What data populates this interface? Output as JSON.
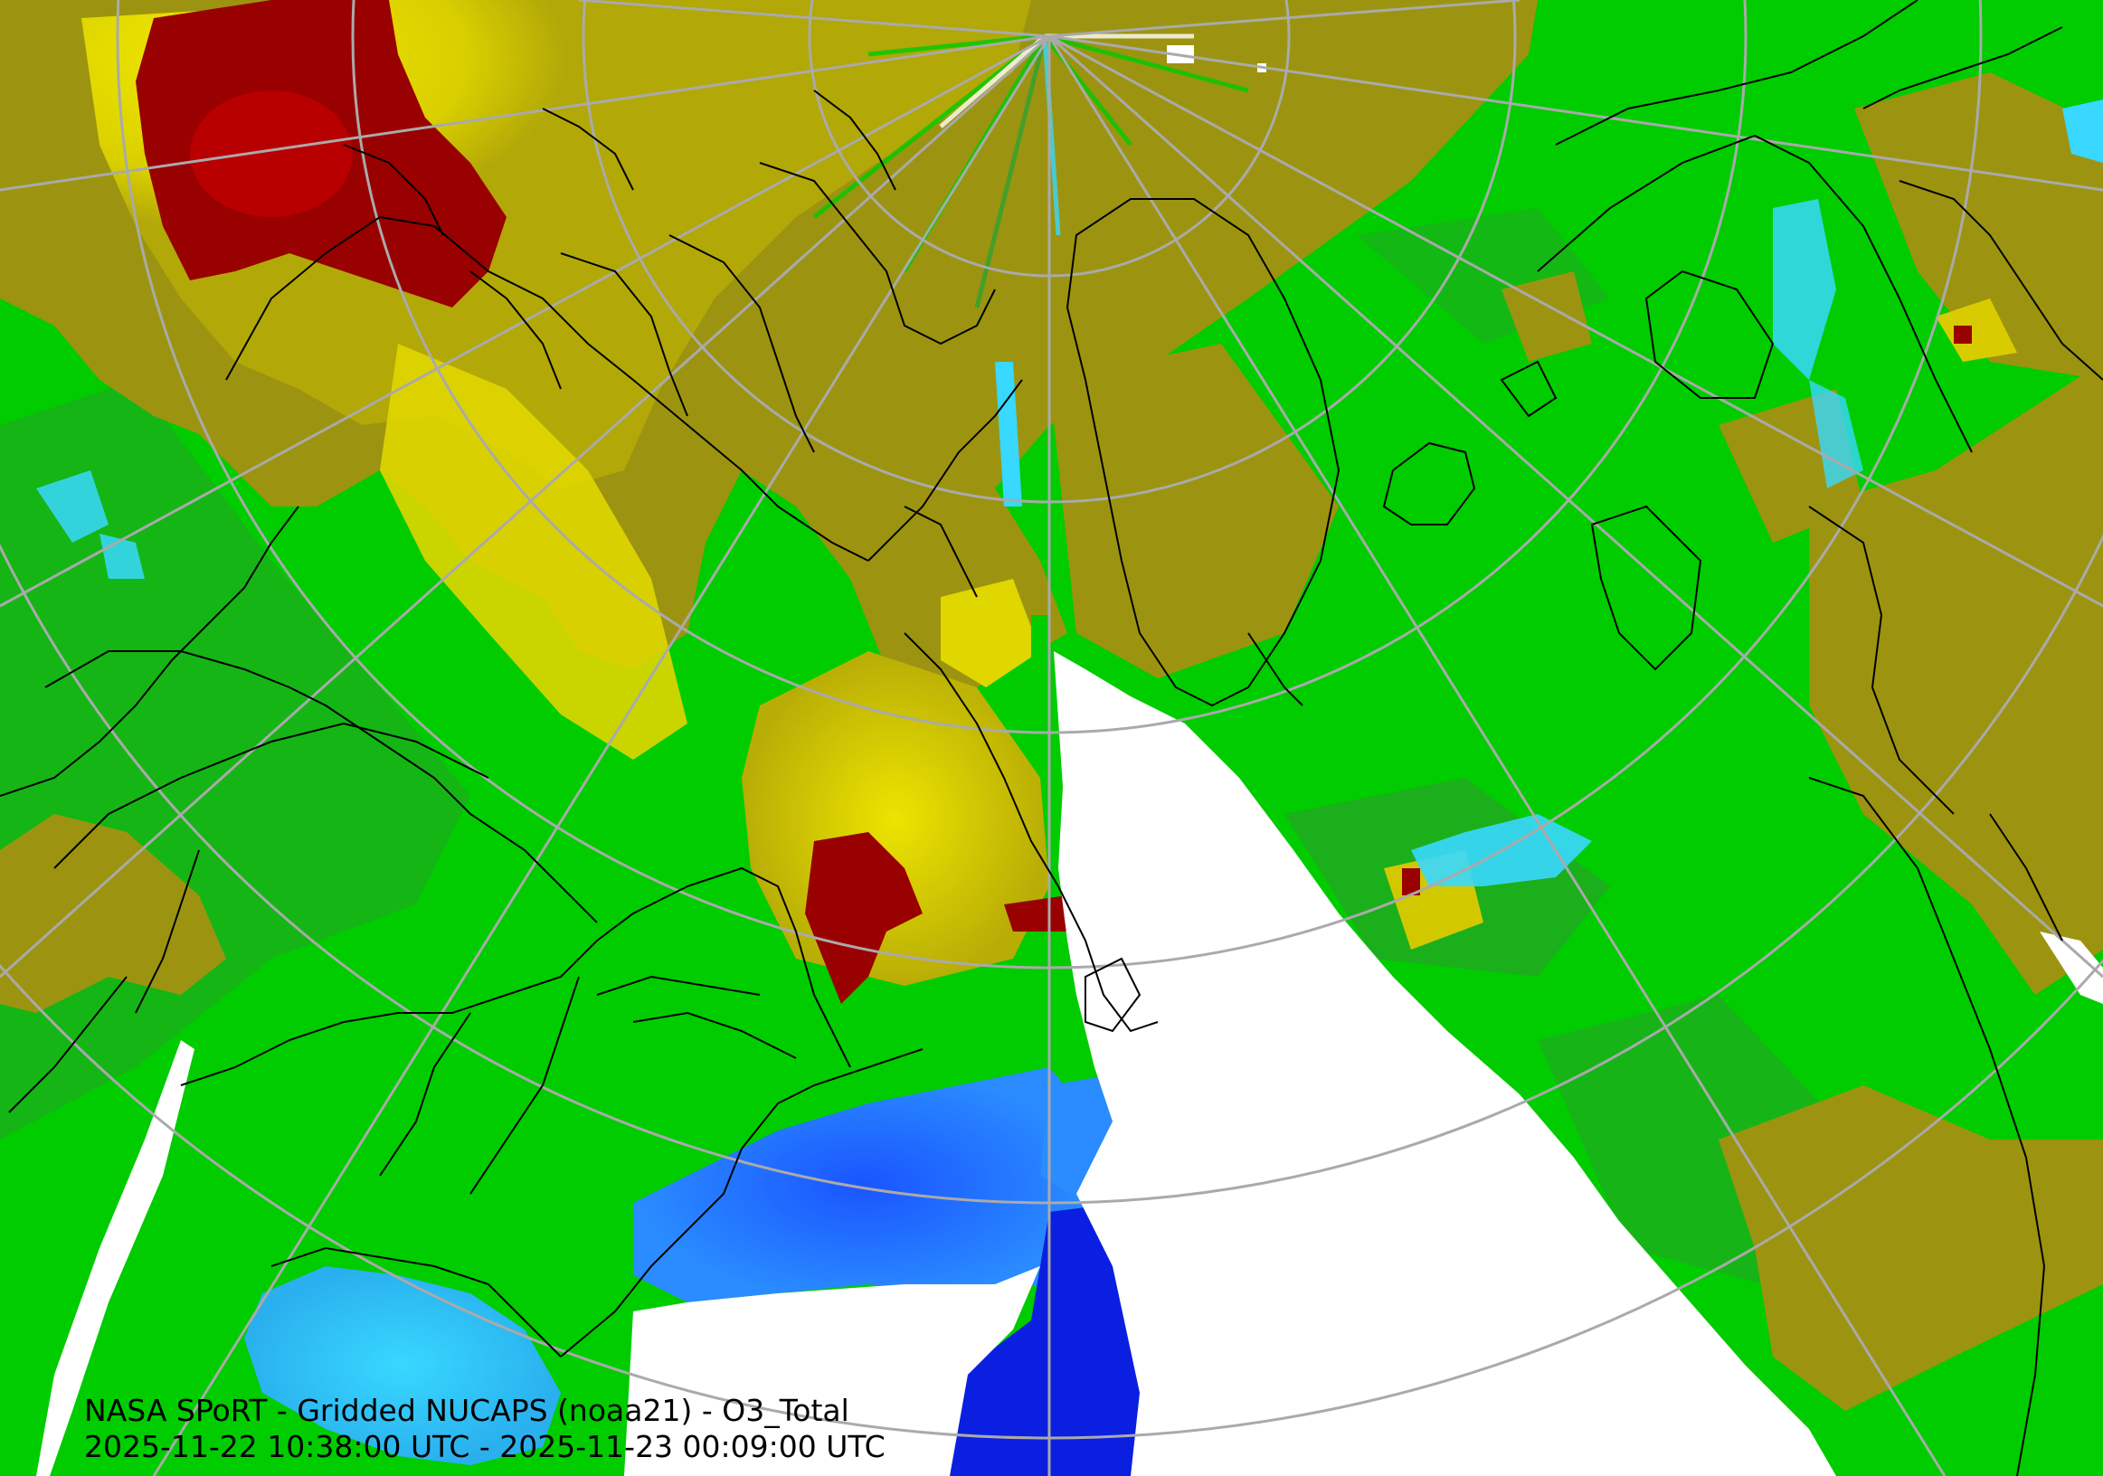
{
  "caption": {
    "line1": "NASA SPoRT - Gridded NUCAPS (noaa21) - O3_Total",
    "line2": "2025-11-22 10:38:00 UTC - 2025-11-23 00:09:00 UTC"
  },
  "colors": {
    "very_low": "#0a1fe0",
    "low": "#2a8cff",
    "low_mid": "#38d8ff",
    "mid": "#00cc00",
    "mid_dark": "#2ea32e",
    "olive": "#9c9410",
    "high": "#e8e000",
    "very_high": "#990000",
    "no_data": "#ffffff",
    "graticule": "#aaaaaa",
    "coastline": "#000000"
  }
}
